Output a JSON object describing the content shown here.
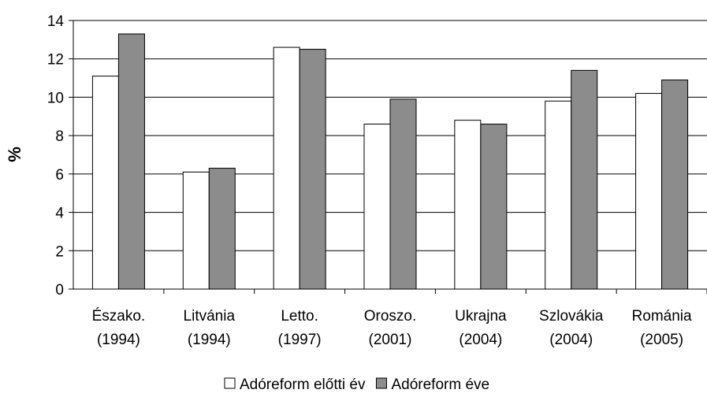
{
  "chart_data": {
    "type": "bar",
    "title": "",
    "ylabel": "%",
    "xlabel": "",
    "ylim": [
      0,
      14
    ],
    "yticks": [
      "0",
      "2",
      "4",
      "6",
      "8",
      "10",
      "12",
      "14"
    ],
    "grid": true,
    "legend_position": "bottom",
    "categories": [
      [
        "Észako.",
        "(1994)"
      ],
      [
        "Litvánia",
        "(1994)"
      ],
      [
        "Letto.",
        "(1997)"
      ],
      [
        "Oroszo.",
        "(2001)"
      ],
      [
        "Ukrajna",
        "(2004)"
      ],
      [
        "Szlovákia",
        "(2004)"
      ],
      [
        "Románia",
        "(2005)"
      ]
    ],
    "series": [
      {
        "name": "Adóreform előtti év",
        "color": "#ffffff",
        "values": [
          11.1,
          6.1,
          12.6,
          8.6,
          8.8,
          9.8,
          10.2
        ]
      },
      {
        "name": "Adóreform éve",
        "color": "#8c8c8c",
        "values": [
          13.3,
          6.3,
          12.5,
          9.9,
          8.6,
          11.4,
          10.9
        ]
      }
    ]
  }
}
